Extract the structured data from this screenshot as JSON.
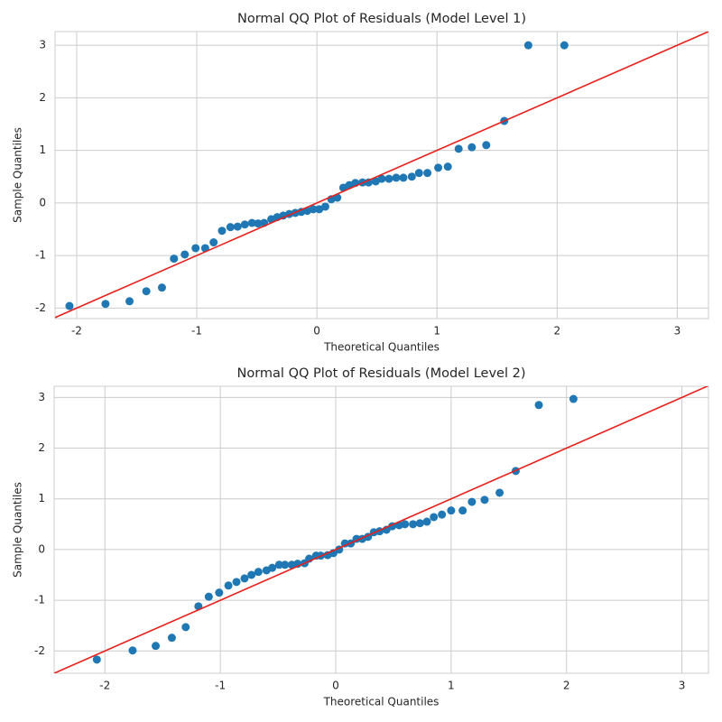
{
  "chart_data": [
    {
      "type": "scatter",
      "title": "Normal QQ Plot of Residuals (Model Level 1)",
      "x_label": "Theoretical Quantiles",
      "y_label": "Sample Quantiles",
      "xlim": [
        -2.18,
        3.26
      ],
      "ylim": [
        -2.2,
        3.26
      ],
      "xticks": [
        -2,
        -1,
        0,
        1,
        2,
        3
      ],
      "yticks": [
        -2,
        -1,
        0,
        1,
        2,
        3
      ],
      "grid": true,
      "series": [
        {
          "color": "#1f77b4",
          "x": [
            -2.06,
            -1.76,
            -1.56,
            -1.42,
            -1.29,
            -1.19,
            -1.1,
            -1.01,
            -0.93,
            -0.86,
            -0.79,
            -0.72,
            -0.66,
            -0.6,
            -0.54,
            -0.49,
            -0.44,
            -0.38,
            -0.33,
            -0.28,
            -0.23,
            -0.18,
            -0.13,
            -0.08,
            -0.03,
            0.02,
            0.07,
            0.12,
            0.17,
            0.22,
            0.27,
            0.32,
            0.38,
            0.43,
            0.49,
            0.54,
            0.6,
            0.66,
            0.72,
            0.79,
            0.85,
            0.92,
            1.01,
            1.09,
            1.18,
            1.29,
            1.41,
            1.56,
            1.76,
            2.06
          ],
          "values": [
            -1.96,
            -1.92,
            -1.87,
            -1.68,
            -1.61,
            -1.06,
            -0.98,
            -0.86,
            -0.86,
            -0.75,
            -0.53,
            -0.46,
            -0.45,
            -0.41,
            -0.38,
            -0.39,
            -0.38,
            -0.31,
            -0.27,
            -0.24,
            -0.21,
            -0.19,
            -0.17,
            -0.15,
            -0.12,
            -0.12,
            -0.07,
            0.07,
            0.1,
            0.29,
            0.34,
            0.38,
            0.39,
            0.39,
            0.41,
            0.46,
            0.46,
            0.48,
            0.48,
            0.5,
            0.57,
            0.57,
            0.67,
            0.69,
            1.03,
            1.06,
            1.1,
            1.56,
            3.0,
            3.0
          ]
        }
      ],
      "reference_line": {
        "color": "#e8201b",
        "x": [
          -2.18,
          3.26
        ],
        "values": [
          -2.18,
          3.26
        ]
      }
    },
    {
      "type": "scatter",
      "title": "Normal QQ Plot of Residuals (Model Level 2)",
      "x_label": "Theoretical Quantiles",
      "y_label": "Sample Quantiles",
      "xlim": [
        -2.44,
        3.23
      ],
      "ylim": [
        -2.44,
        3.22
      ],
      "xticks": [
        -2,
        -1,
        0,
        1,
        2,
        3
      ],
      "yticks": [
        -2,
        -1,
        0,
        1,
        2,
        3
      ],
      "grid": true,
      "series": [
        {
          "color": "#1f77b4",
          "x": [
            -2.07,
            -1.76,
            -1.56,
            -1.42,
            -1.3,
            -1.19,
            -1.1,
            -1.01,
            -0.93,
            -0.86,
            -0.79,
            -0.73,
            -0.67,
            -0.6,
            -0.55,
            -0.49,
            -0.44,
            -0.38,
            -0.33,
            -0.27,
            -0.23,
            -0.17,
            -0.13,
            -0.07,
            -0.02,
            0.03,
            0.08,
            0.13,
            0.18,
            0.23,
            0.28,
            0.33,
            0.38,
            0.44,
            0.49,
            0.55,
            0.6,
            0.67,
            0.73,
            0.79,
            0.85,
            0.92,
            1.0,
            1.1,
            1.18,
            1.29,
            1.42,
            1.56,
            1.76,
            2.06
          ],
          "values": [
            -2.17,
            -1.99,
            -1.9,
            -1.74,
            -1.53,
            -1.12,
            -0.93,
            -0.85,
            -0.71,
            -0.64,
            -0.57,
            -0.5,
            -0.44,
            -0.41,
            -0.36,
            -0.3,
            -0.3,
            -0.3,
            -0.28,
            -0.27,
            -0.18,
            -0.12,
            -0.12,
            -0.11,
            -0.07,
            0.0,
            0.12,
            0.12,
            0.21,
            0.21,
            0.25,
            0.34,
            0.36,
            0.39,
            0.46,
            0.48,
            0.5,
            0.5,
            0.52,
            0.55,
            0.64,
            0.69,
            0.77,
            0.77,
            0.94,
            0.98,
            1.12,
            1.55,
            2.85,
            2.97
          ]
        }
      ],
      "reference_line": {
        "color": "#e8201b",
        "x": [
          -2.44,
          3.23
        ],
        "values": [
          -2.44,
          3.23
        ]
      }
    }
  ]
}
